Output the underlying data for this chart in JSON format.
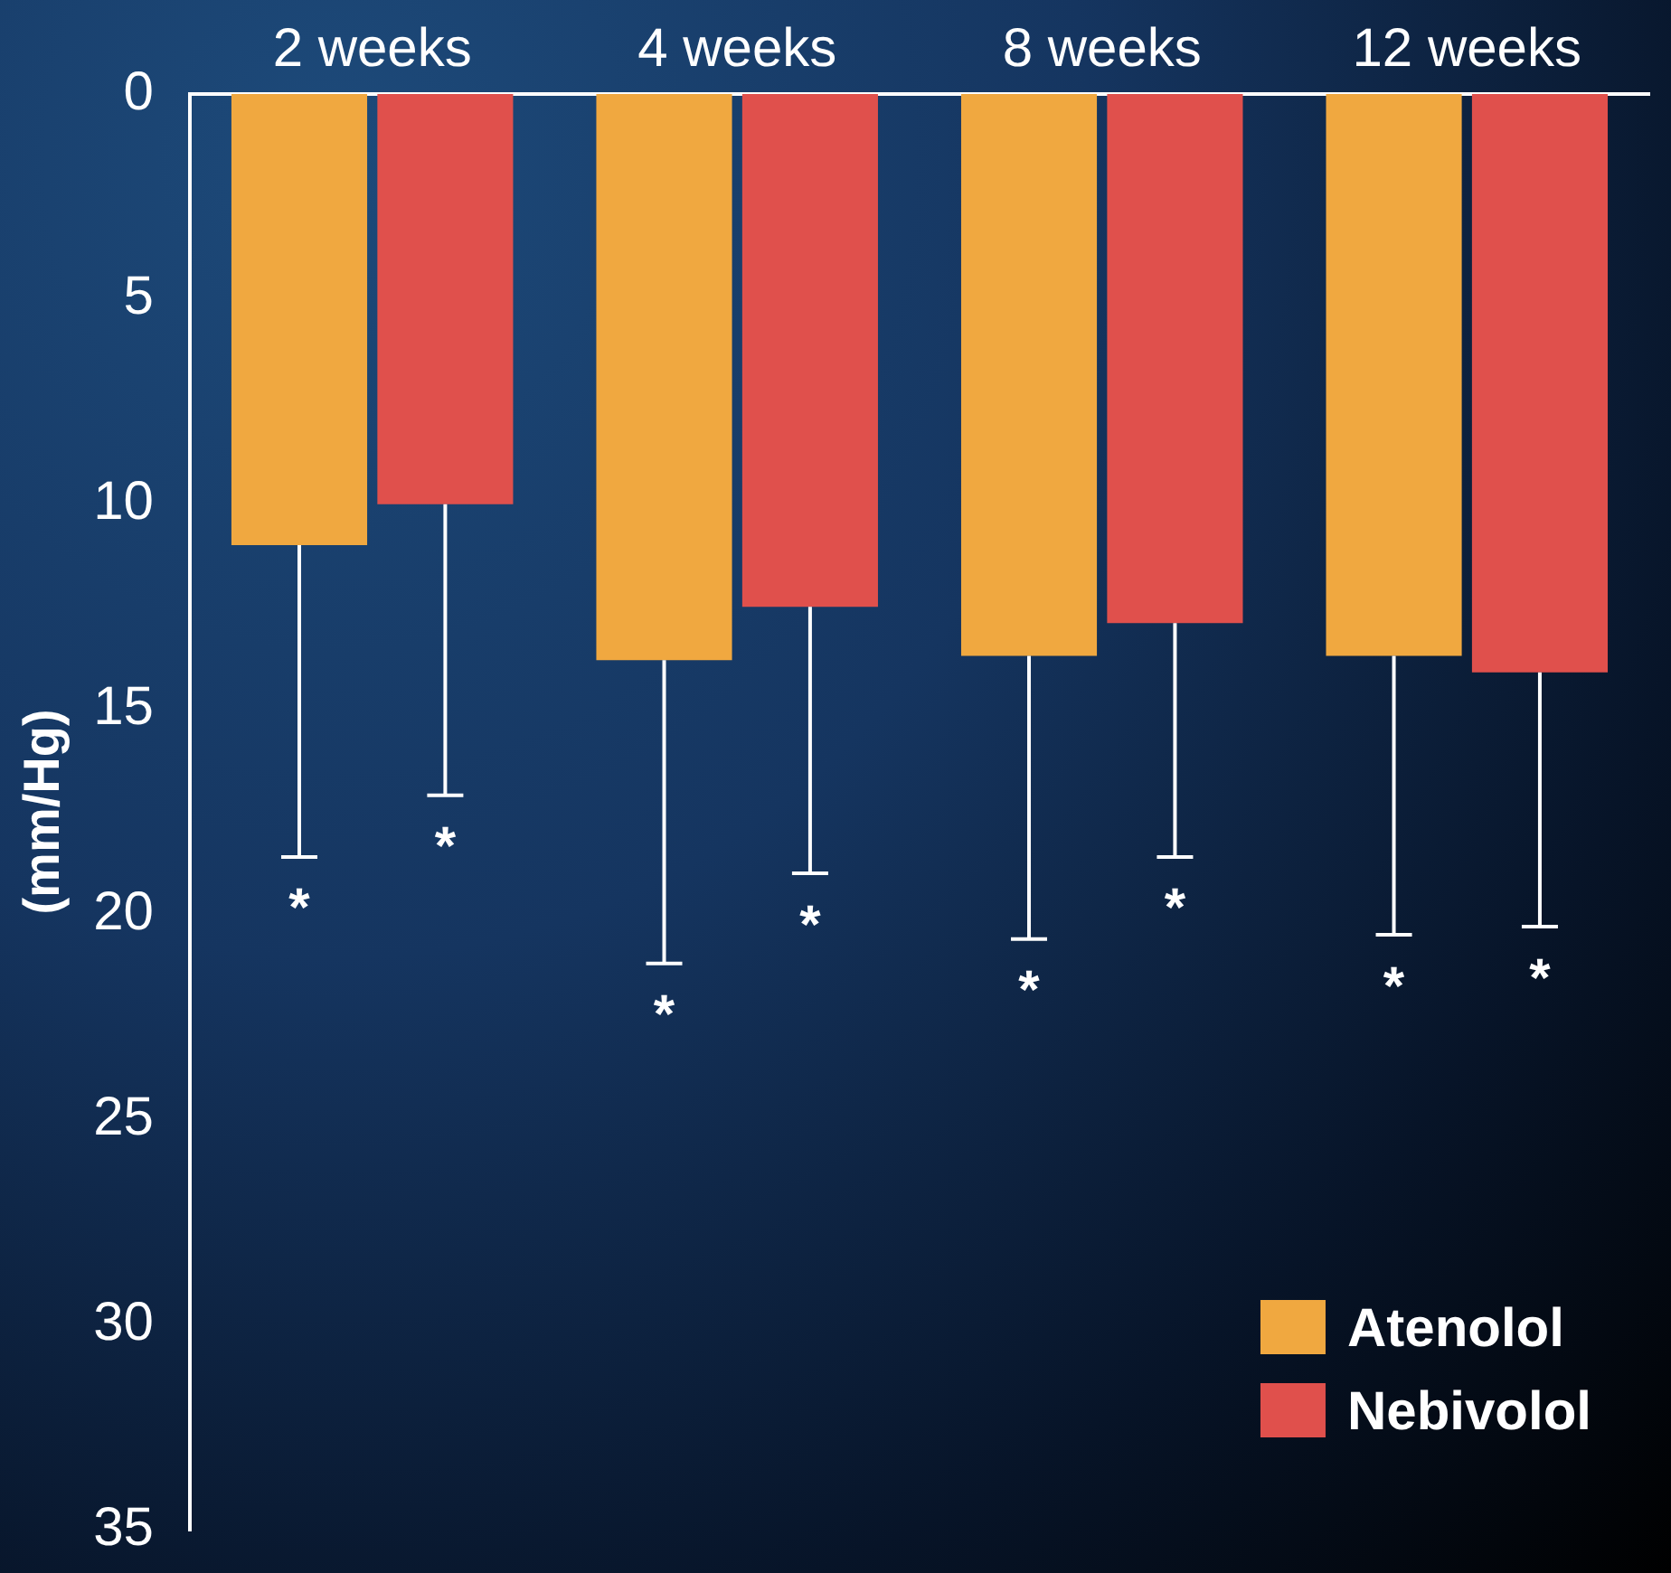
{
  "chart_data": {
    "type": "bar",
    "ylabel": "(mm/Hg)",
    "categories": [
      "2 weeks",
      "4 weeks",
      "8 weeks",
      "12 weeks"
    ],
    "series": [
      {
        "name": "Atenolol",
        "color": "#f0a840",
        "values": [
          11,
          13.8,
          13.7,
          13.7
        ],
        "errors": [
          [
            11,
            18.6
          ],
          [
            13.8,
            21.2
          ],
          [
            13.7,
            20.6
          ],
          [
            13.7,
            20.5
          ]
        ]
      },
      {
        "name": "Nebivolol",
        "color": "#e0504c",
        "values": [
          10,
          12.5,
          12.9,
          14.1
        ],
        "errors": [
          [
            10,
            17.1
          ],
          [
            12.5,
            19
          ],
          [
            12.9,
            18.6
          ],
          [
            14.1,
            20.3
          ]
        ]
      }
    ],
    "ylim": [
      35,
      0
    ],
    "yticks": [
      0,
      5,
      10,
      15,
      20,
      25,
      30,
      35
    ],
    "grid": false,
    "legend": "bottom right",
    "annotations": [
      "*",
      "*",
      "*",
      "*",
      "*",
      "*",
      "*",
      "*"
    ]
  }
}
